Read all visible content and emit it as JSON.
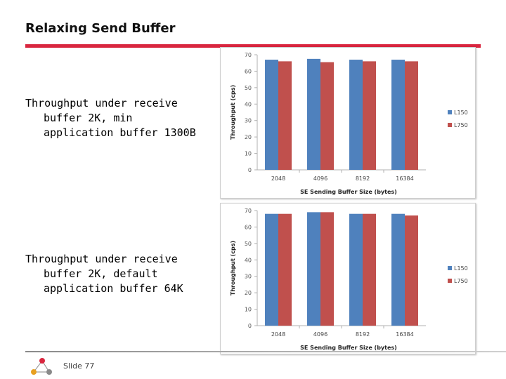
{
  "slide": {
    "title": "Relaxing Send Buffer",
    "accent_color": "#d9263f",
    "slide_number": "Slide 77",
    "text_blocks": [
      {
        "line1": "Throughput under receive",
        "line2": "buffer 2K, min",
        "line3": "application buffer 1300B"
      },
      {
        "line1": "Throughput under receive",
        "line2": "buffer 2K, default",
        "line3": "application buffer 64K"
      }
    ]
  },
  "chart_data": [
    {
      "type": "bar",
      "categories": [
        "2048",
        "4096",
        "8192",
        "16384"
      ],
      "series": [
        {
          "name": "L150",
          "values": [
            67,
            67.5,
            67,
            67
          ],
          "color": "#4f81bd"
        },
        {
          "name": "L750",
          "values": [
            66,
            65.5,
            66,
            66
          ],
          "color": "#c0504d"
        }
      ],
      "xlabel": "SE Sending Buffer Size (bytes)",
      "ylabel": "Throughput (cps)",
      "ylim": [
        0,
        70
      ],
      "yticks": [
        "0",
        "10",
        "20",
        "30",
        "40",
        "50",
        "60",
        "70"
      ],
      "grid": false,
      "legend": "right"
    },
    {
      "type": "bar",
      "categories": [
        "2048",
        "4096",
        "8192",
        "16384"
      ],
      "series": [
        {
          "name": "L150",
          "values": [
            68,
            69,
            68,
            68
          ],
          "color": "#4f81bd"
        },
        {
          "name": "L750",
          "values": [
            68,
            69,
            68,
            67
          ],
          "color": "#c0504d"
        }
      ],
      "xlabel": "SE Sending Buffer Size (bytes)",
      "ylabel": "Throughput (cps)",
      "ylim": [
        0,
        70
      ],
      "yticks": [
        "0",
        "10",
        "20",
        "30",
        "40",
        "50",
        "60",
        "70"
      ],
      "grid": false,
      "legend": "right"
    }
  ]
}
